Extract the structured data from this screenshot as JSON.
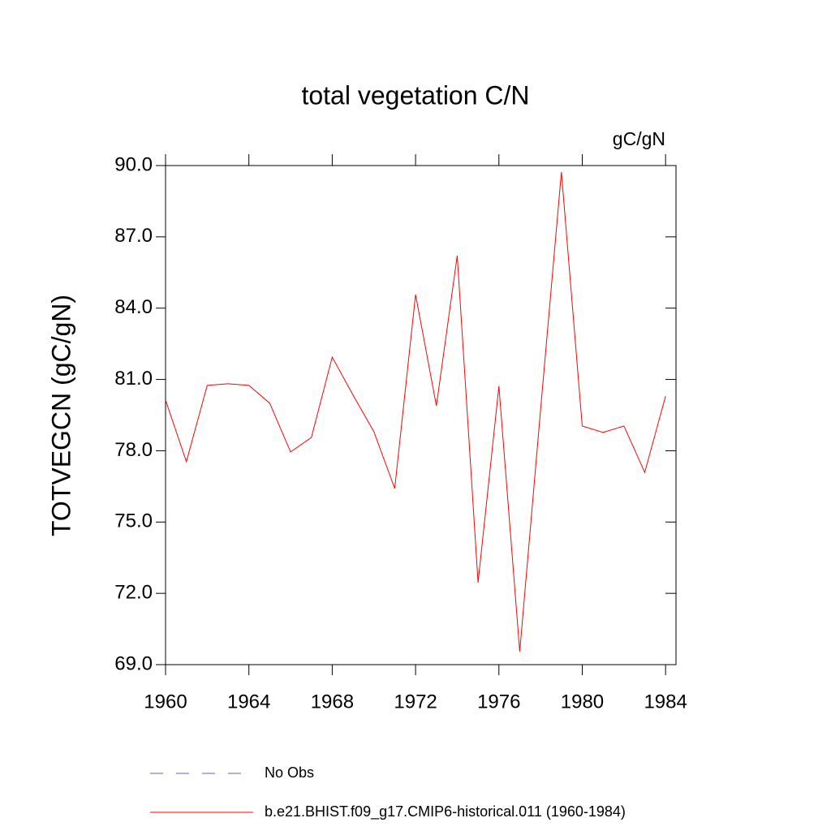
{
  "chart_data": {
    "type": "line",
    "title": "total vegetation C/N",
    "units": "gC/gN",
    "y_label": "TOTVEGCN  (gC/gN)",
    "x": [
      1960,
      1961,
      1962,
      1963,
      1964,
      1965,
      1966,
      1967,
      1968,
      1969,
      1970,
      1971,
      1972,
      1973,
      1974,
      1975,
      1976,
      1977,
      1978,
      1979,
      1980,
      1981,
      1982,
      1983,
      1984
    ],
    "series": [
      {
        "name": "b.e21.BHIST.f09_g17.CMIP6-historical.011 (1960-1984)",
        "color": "#ff0000",
        "style": "solid",
        "values": [
          80.13,
          77.54,
          80.75,
          80.82,
          80.75,
          80.0,
          77.95,
          78.56,
          81.94,
          80.34,
          78.8,
          76.41,
          84.57,
          79.89,
          86.21,
          72.45,
          80.71,
          69.55,
          79.72,
          89.73,
          79.04,
          78.77,
          79.04,
          77.09,
          80.3
        ]
      }
    ],
    "extra_legend": [
      {
        "name": "No Obs",
        "color": "#6a5acd",
        "style": "dashed"
      }
    ],
    "xlim": [
      1960,
      1984.5
    ],
    "xticks": [
      1960,
      1964,
      1968,
      1972,
      1976,
      1980,
      1984
    ],
    "ylim": [
      69,
      90
    ],
    "yticks": [
      {
        "value": 69,
        "label": "69.0"
      },
      {
        "value": 72,
        "label": "72.0"
      },
      {
        "value": 75,
        "label": "75.0"
      },
      {
        "value": 78,
        "label": "78.0"
      },
      {
        "value": 81,
        "label": "81.0"
      },
      {
        "value": 84,
        "label": "84.0"
      },
      {
        "value": 87,
        "label": "87.0"
      },
      {
        "value": 90,
        "label": "90.0"
      }
    ],
    "grid": false
  }
}
